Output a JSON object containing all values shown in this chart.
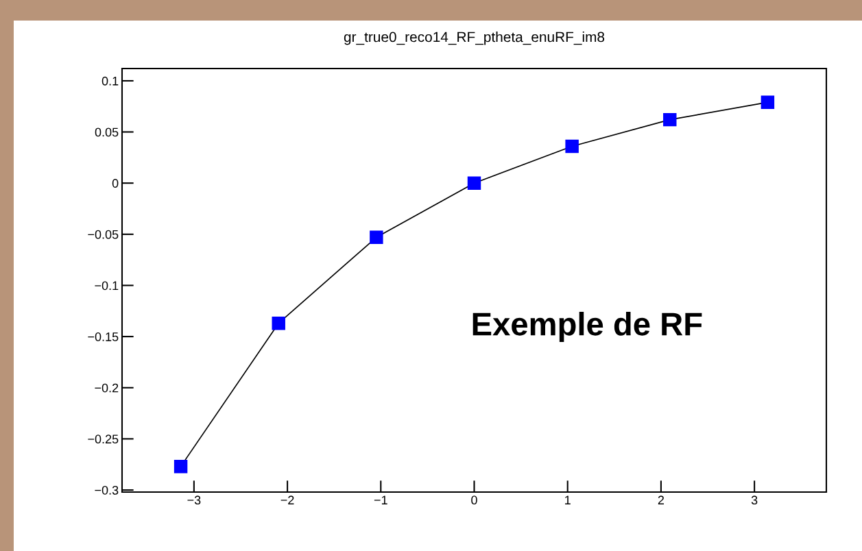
{
  "chart_data": {
    "type": "line",
    "title": "gr_true0_reco14_RF_ptheta_enuRF_im8",
    "x": [
      -3.1416,
      -2.0944,
      -1.0472,
      0,
      1.0472,
      2.0944,
      3.1416
    ],
    "series": [
      {
        "color": "#0000ff",
        "values": [
          -0.277,
          -0.137,
          -0.053,
          0,
          0.036,
          0.062,
          0.079
        ]
      }
    ],
    "marker": "square",
    "line_style": "solid",
    "grid": false,
    "legend": false,
    "xlim": [
      -3.77,
      3.77
    ],
    "xticks": [
      {
        "value": -3,
        "label": "−3"
      },
      {
        "value": -2,
        "label": "−2"
      },
      {
        "value": -1,
        "label": "−1"
      },
      0,
      1,
      2,
      3
    ],
    "ylim": [
      -0.302,
      0.112
    ],
    "yticks": [
      {
        "value": -0.3,
        "label": "−0.3"
      },
      {
        "value": -0.25,
        "label": "−0.25"
      },
      {
        "value": -0.2,
        "label": "−0.2"
      },
      {
        "value": -0.15,
        "label": "−0.15"
      },
      {
        "value": -0.1,
        "label": "−0.1"
      },
      {
        "value": -0.05,
        "label": "−0.05"
      },
      0,
      0.05,
      0.1
    ],
    "annotations": [
      "Exemple de RF"
    ]
  }
}
